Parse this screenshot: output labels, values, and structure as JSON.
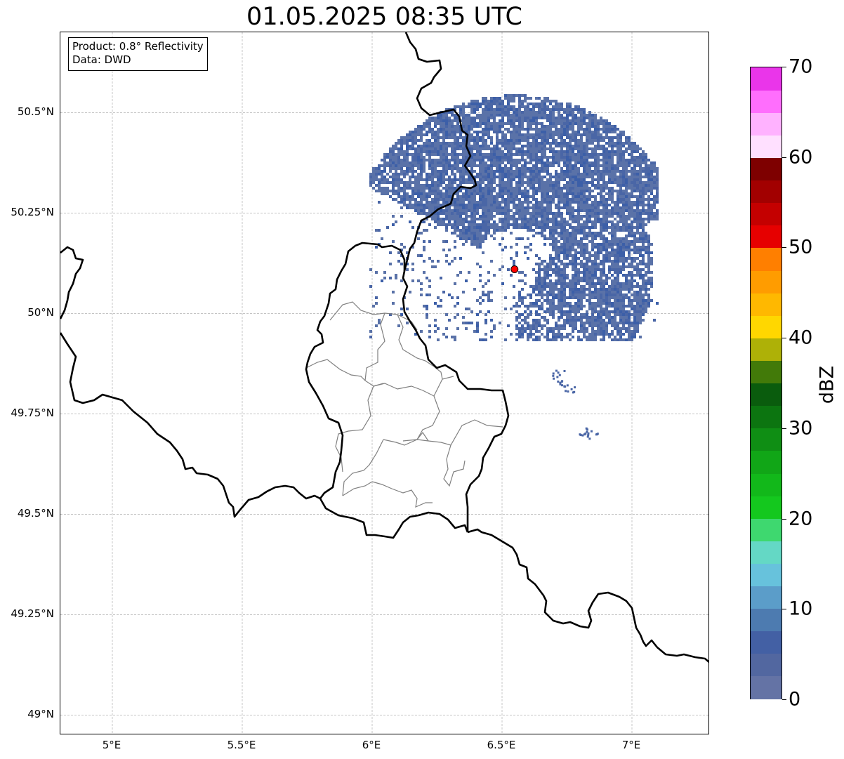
{
  "title": "01.05.2025 08:35 UTC",
  "info": {
    "product": "Product: 0.8° Reflectivity",
    "data": "Data: DWD"
  },
  "map": {
    "extent": {
      "lon_min": 4.8,
      "lon_max": 7.3,
      "lat_min": 48.95,
      "lat_max": 50.7
    },
    "lat_ticks": [
      {
        "value": 49.0,
        "label": "49°N"
      },
      {
        "value": 49.25,
        "label": "49.25°N"
      },
      {
        "value": 49.5,
        "label": "49.5°N"
      },
      {
        "value": 49.75,
        "label": "49.75°N"
      },
      {
        "value": 50.0,
        "label": "50°N"
      },
      {
        "value": 50.25,
        "label": "50.25°N"
      },
      {
        "value": 50.5,
        "label": "50.5°N"
      }
    ],
    "lon_ticks": [
      {
        "value": 5.0,
        "label": "5°E"
      },
      {
        "value": 5.5,
        "label": "5.5°E"
      },
      {
        "value": 6.0,
        "label": "6°E"
      },
      {
        "value": 6.5,
        "label": "6.5°E"
      },
      {
        "value": 7.0,
        "label": "7°E"
      }
    ],
    "radar_site": {
      "lon": 6.548,
      "lat": 50.11,
      "color": "#ff0000"
    },
    "colors": {
      "border": "#000000",
      "admin": "#808080",
      "grid": "#b0b0b0",
      "echo": "#4a6aa6"
    }
  },
  "colorbar": {
    "unit": "dBZ",
    "min": 0,
    "max": 70,
    "tick_labels": [
      "0",
      "10",
      "20",
      "30",
      "40",
      "50",
      "60",
      "70"
    ],
    "colors": [
      "#6473a5",
      "#5267a0",
      "#4360a4",
      "#4d7bb0",
      "#5b9dc9",
      "#67c2dc",
      "#64d8c5",
      "#3ed86f",
      "#14c81e",
      "#12b81a",
      "#11a617",
      "#0f8e14",
      "#0c7510",
      "#0a5c0d",
      "#427a09",
      "#aeb107",
      "#ffd700",
      "#ffb800",
      "#ff9c00",
      "#ff7f00",
      "#e60000",
      "#c40000",
      "#a20000",
      "#7e0000",
      "#ffe0ff",
      "#ffb2ff",
      "#ff6efd",
      "#ea35ea"
    ]
  }
}
